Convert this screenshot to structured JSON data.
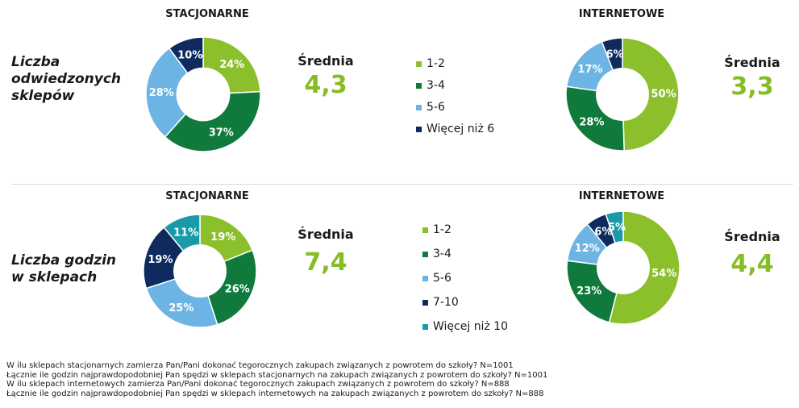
{
  "colors": {
    "light_green": "#8cbf2c",
    "dark_green": "#107a3c",
    "light_blue": "#6cb4e4",
    "navy": "#0e2a5e",
    "teal": "#1a9aa8",
    "average_text": "#86bc25"
  },
  "headers": {
    "stationary": "STACJONARNE",
    "online": "INTERNETOWE"
  },
  "rows": {
    "stores": {
      "label_lines": [
        "Liczba",
        "odwiedzonych",
        "sklepów"
      ]
    },
    "hours": {
      "label_lines": [
        "Liczba godzin",
        "w sklepach"
      ]
    }
  },
  "averages": {
    "label": "Średnia",
    "stores_stationary": "4,3",
    "stores_online": "3,3",
    "hours_stationary": "7,4",
    "hours_online": "4,4"
  },
  "legends": {
    "stores": [
      {
        "label": "1-2",
        "color": "#8cbf2c"
      },
      {
        "label": "3-4",
        "color": "#107a3c"
      },
      {
        "label": "5-6",
        "color": "#6cb4e4"
      },
      {
        "label": "Więcej niż 6",
        "color": "#0e2a5e"
      }
    ],
    "hours": [
      {
        "label": "1-2",
        "color": "#8cbf2c"
      },
      {
        "label": "3-4",
        "color": "#107a3c"
      },
      {
        "label": "5-6",
        "color": "#6cb4e4"
      },
      {
        "label": "7-10",
        "color": "#0e2a5e"
      },
      {
        "label": "Więcej niż 10",
        "color": "#1a9aa8"
      }
    ]
  },
  "chart_data": [
    {
      "type": "pie",
      "title": "STACJONARNE",
      "subject": "Liczba odwiedzonych sklepów",
      "categories": [
        "1-2",
        "3-4",
        "5-6",
        "Więcej niż 6"
      ],
      "values": [
        24,
        37,
        28,
        10
      ],
      "labels": [
        "24%",
        "37%",
        "28%",
        "10%"
      ],
      "colors": [
        "#8cbf2c",
        "#107a3c",
        "#6cb4e4",
        "#0e2a5e"
      ]
    },
    {
      "type": "pie",
      "title": "INTERNETOWE",
      "subject": "Liczba odwiedzonych sklepów",
      "categories": [
        "1-2",
        "3-4",
        "5-6",
        "Więcej niż 6"
      ],
      "values": [
        50,
        28,
        17,
        6
      ],
      "labels": [
        "50%",
        "28%",
        "17%",
        "6%"
      ],
      "colors": [
        "#8cbf2c",
        "#107a3c",
        "#6cb4e4",
        "#0e2a5e"
      ]
    },
    {
      "type": "pie",
      "title": "STACJONARNE",
      "subject": "Liczba godzin w sklepach",
      "categories": [
        "1-2",
        "3-4",
        "5-6",
        "7-10",
        "Więcej niż 10"
      ],
      "values": [
        19,
        26,
        25,
        19,
        11
      ],
      "labels": [
        "19%",
        "26%",
        "25%",
        "19%",
        "11%"
      ],
      "colors": [
        "#8cbf2c",
        "#107a3c",
        "#6cb4e4",
        "#0e2a5e",
        "#1a9aa8"
      ]
    },
    {
      "type": "pie",
      "title": "INTERNETOWE",
      "subject": "Liczba godzin w sklepach",
      "categories": [
        "1-2",
        "3-4",
        "5-6",
        "7-10",
        "Więcej niż 10"
      ],
      "values": [
        54,
        23,
        12,
        6,
        5
      ],
      "labels": [
        "54%",
        "23%",
        "12%",
        "6%",
        "5%"
      ],
      "colors": [
        "#8cbf2c",
        "#107a3c",
        "#6cb4e4",
        "#0e2a5e",
        "#1a9aa8"
      ]
    }
  ],
  "footnotes": [
    "W ilu sklepach stacjonarnych zamierza Pan/Pani dokonać tegorocznych zakupach związanych z powrotem do szkoły? N=1001",
    "Łącznie ile godzin najprawdopodobniej Pan spędzi w sklepach stacjonarnych na zakupach związanych z powrotem do szkoły? N=1001",
    "W ilu sklepach internetowych zamierza Pan/Pani dokonać tegorocznych zakupach związanych z powrotem do szkoły? N=888",
    "Łącznie ile godzin najprawdopodobniej Pan spędzi w sklepach internetowych na zakupach związanych z powrotem do szkoły? N=888"
  ]
}
